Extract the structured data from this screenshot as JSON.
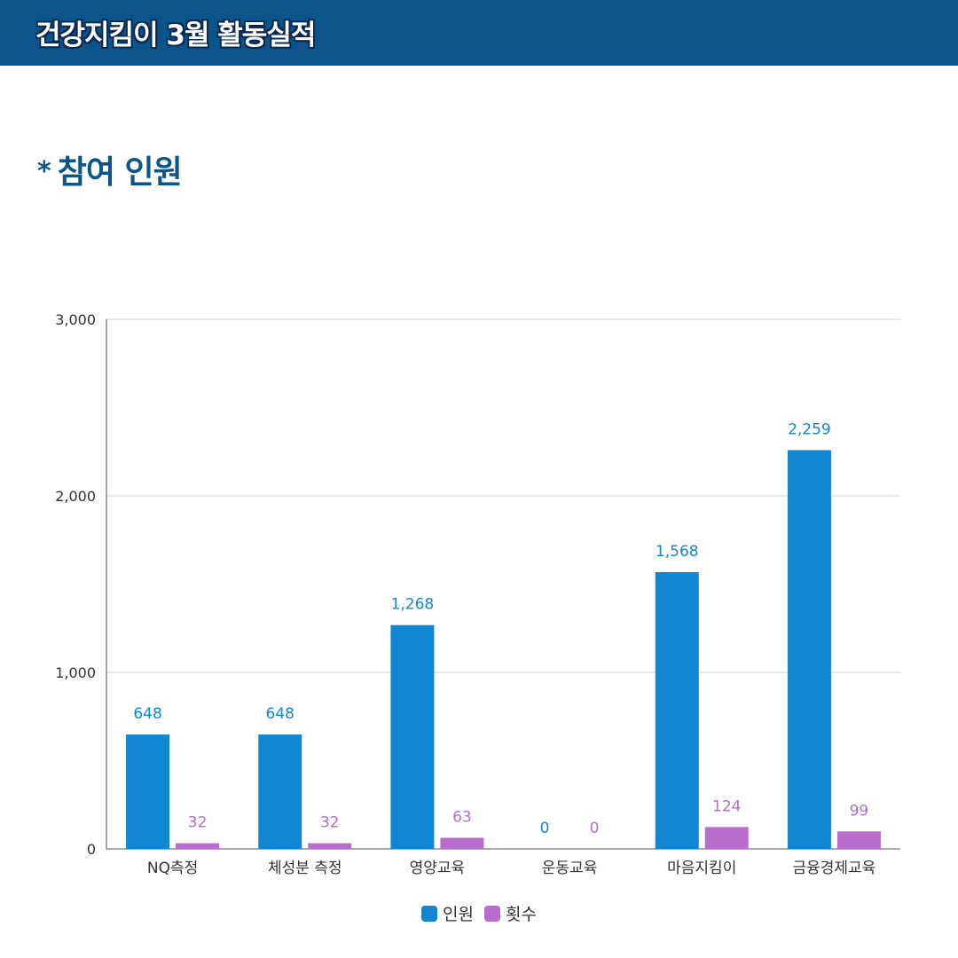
{
  "header": {
    "title": "건강지킴이 3월 활동실적"
  },
  "section": {
    "bullet": "*",
    "title": "참여 인원"
  },
  "colors": {
    "header_bg": "#0b558a",
    "series_1": "#1287d1",
    "series_2": "#b96ccb"
  },
  "chart_data": {
    "type": "bar",
    "categories": [
      "NQ측정",
      "체성분 측정",
      "영양교육",
      "운동교육",
      "마음지킴이",
      "금융경제교육"
    ],
    "series": [
      {
        "name": "인원",
        "values": [
          648,
          648,
          1268,
          0,
          1568,
          2259
        ],
        "labels": [
          "648",
          "648",
          "1,268",
          "0",
          "1,568",
          "2,259"
        ]
      },
      {
        "name": "횟수",
        "values": [
          32,
          32,
          63,
          0,
          124,
          99
        ],
        "labels": [
          "32",
          "32",
          "63",
          "0",
          "124",
          "99"
        ]
      }
    ],
    "ylim": [
      0,
      3000
    ],
    "yticks": [
      0,
      1000,
      2000,
      3000
    ],
    "ytick_labels": [
      "0",
      "1,000",
      "2,000",
      "3,000"
    ],
    "grid": true,
    "legend": "bottom-center"
  }
}
